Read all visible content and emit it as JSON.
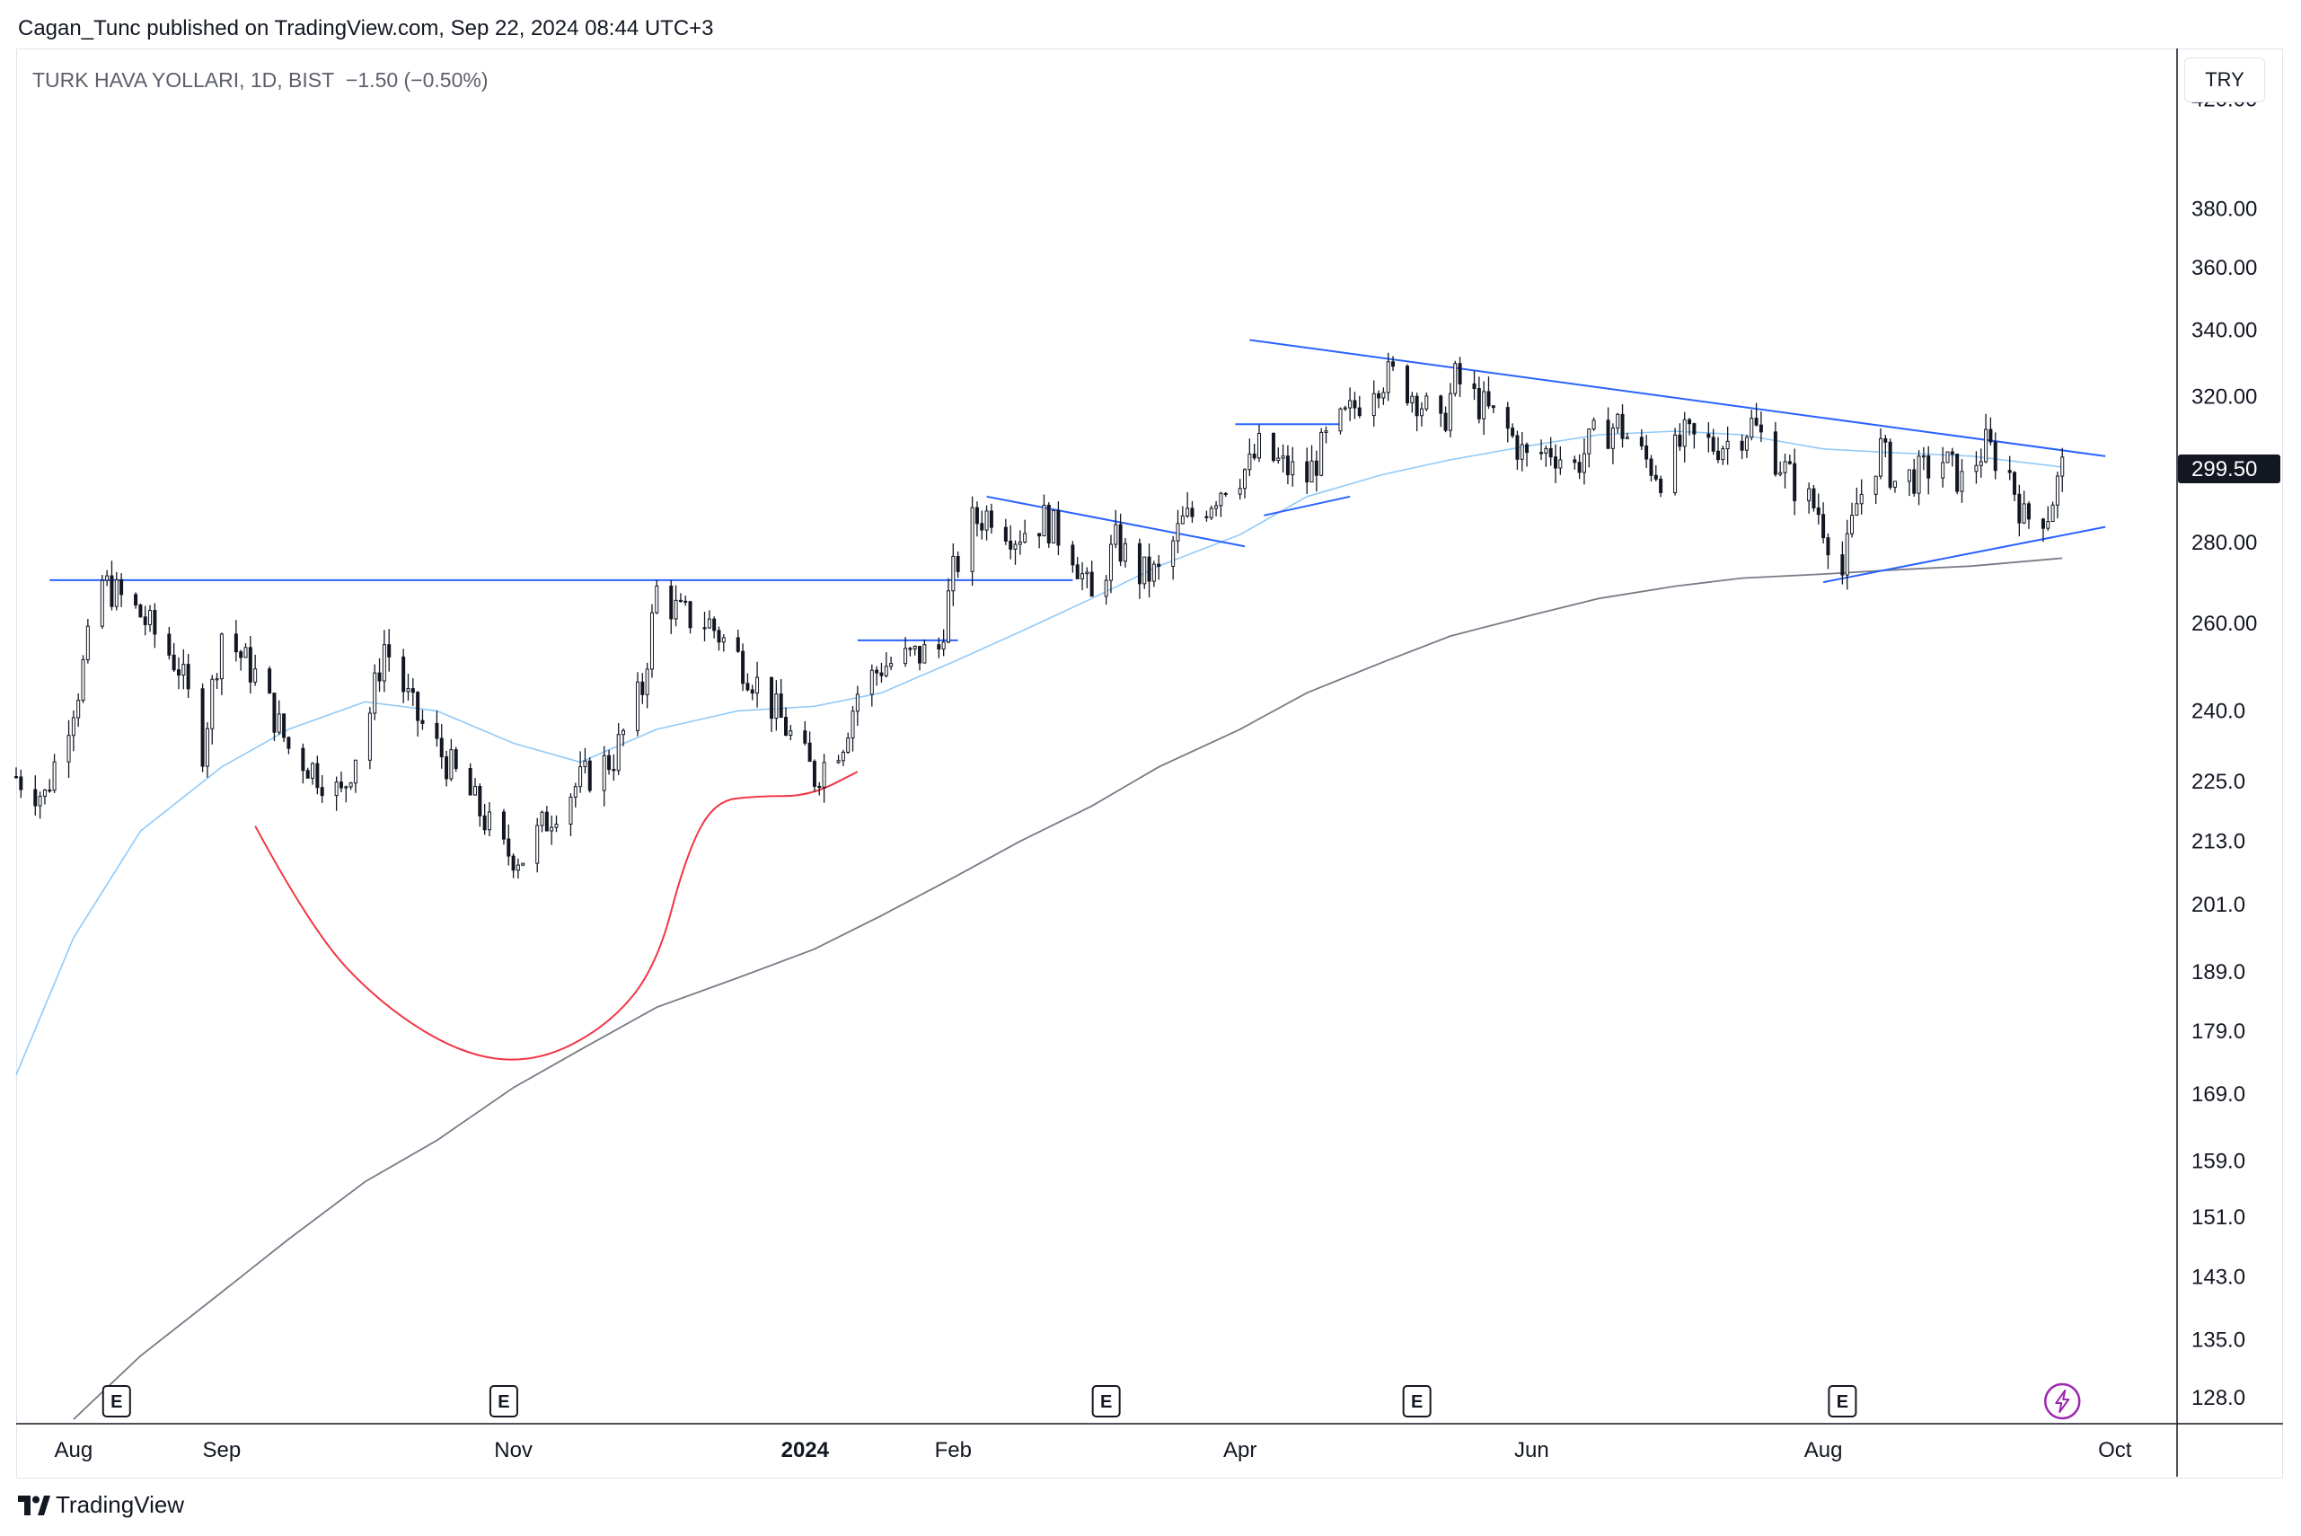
{
  "header": {
    "published": "Cagan_Tunc published on TradingView.com, Sep 22, 2024 08:44 UTC+3"
  },
  "legend": {
    "symbol": "TURK HAVA YOLLARI, 1D, BIST",
    "change": "−1.50 (−0.50%)"
  },
  "currency": "TRY",
  "brand": "TradingView",
  "colors": {
    "candle_up": "#ffffff",
    "candle_down": "#131722",
    "candle_border": "#131722",
    "ma_fast": "#90caf9",
    "ma_slow": "#787b86",
    "trendline": "#2962ff",
    "curve": "#f23645",
    "price_tag": "#131722",
    "earnings_icon": "#131722",
    "dividend_icon": "#9c27b0"
  },
  "chart_data": {
    "type": "candlestick",
    "title": "",
    "ylabel": "",
    "y_scale": "log",
    "ylim": [
      125,
      440
    ],
    "xlim": [
      "2023-07-20",
      "2024-10-14"
    ],
    "y_ticks": [
      "420.00",
      "380.00",
      "360.00",
      "340.00",
      "320.00",
      "300.00",
      "280.00",
      "260.00",
      "240.0",
      "225.0",
      "213.0",
      "201.0",
      "189.0",
      "179.0",
      "169.0",
      "159.0",
      "151.0",
      "143.0",
      "135.0",
      "128.0"
    ],
    "x_ticks": [
      {
        "label": "Aug",
        "date": "2023-08-01"
      },
      {
        "label": "Sep",
        "date": "2023-09-01"
      },
      {
        "label": "Nov",
        "date": "2023-11-01"
      },
      {
        "label": "2024",
        "date": "2024-01-01",
        "bold": true
      },
      {
        "label": "Feb",
        "date": "2024-02-01"
      },
      {
        "label": "Apr",
        "date": "2024-04-01"
      },
      {
        "label": "Jun",
        "date": "2024-06-01"
      },
      {
        "label": "Aug",
        "date": "2024-08-01"
      },
      {
        "label": "Oct",
        "date": "2024-10-01"
      }
    ],
    "last_price": "299.50",
    "close_path": [
      [
        "2023-07-20",
        226
      ],
      [
        "2023-07-26",
        222
      ],
      [
        "2023-08-02",
        245
      ],
      [
        "2023-08-07",
        270
      ],
      [
        "2023-08-15",
        262
      ],
      [
        "2023-08-23",
        250
      ],
      [
        "2023-08-28",
        232
      ],
      [
        "2023-09-01",
        258
      ],
      [
        "2023-09-08",
        248
      ],
      [
        "2023-09-15",
        232
      ],
      [
        "2023-09-22",
        226
      ],
      [
        "2023-09-26",
        222
      ],
      [
        "2023-10-02",
        240
      ],
      [
        "2023-10-05",
        255
      ],
      [
        "2023-10-11",
        240
      ],
      [
        "2023-10-16",
        232
      ],
      [
        "2023-10-23",
        222
      ],
      [
        "2023-10-30",
        211
      ],
      [
        "2023-11-03",
        210
      ],
      [
        "2023-11-10",
        220
      ],
      [
        "2023-11-15",
        225
      ],
      [
        "2023-11-22",
        230
      ],
      [
        "2023-11-28",
        245
      ],
      [
        "2023-12-01",
        268
      ],
      [
        "2023-12-06",
        262
      ],
      [
        "2023-12-12",
        260
      ],
      [
        "2023-12-18",
        252
      ],
      [
        "2023-12-22",
        246
      ],
      [
        "2023-12-27",
        238
      ],
      [
        "2024-01-03",
        226
      ],
      [
        "2024-01-09",
        234
      ],
      [
        "2024-01-12",
        244
      ],
      [
        "2024-01-17",
        250
      ],
      [
        "2024-01-23",
        252
      ],
      [
        "2024-01-29",
        254
      ],
      [
        "2024-02-01",
        272
      ],
      [
        "2024-02-05",
        285
      ],
      [
        "2024-02-09",
        288
      ],
      [
        "2024-02-14",
        282
      ],
      [
        "2024-02-20",
        286
      ],
      [
        "2024-02-26",
        278
      ],
      [
        "2024-03-01",
        265
      ],
      [
        "2024-03-06",
        280
      ],
      [
        "2024-03-11",
        272
      ],
      [
        "2024-03-15",
        272
      ],
      [
        "2024-03-20",
        285
      ],
      [
        "2024-03-25",
        290
      ],
      [
        "2024-03-29",
        296
      ],
      [
        "2024-04-03",
        300
      ],
      [
        "2024-04-05",
        305
      ],
      [
        "2024-04-10",
        300
      ],
      [
        "2024-04-15",
        297
      ],
      [
        "2024-04-19",
        307
      ],
      [
        "2024-04-24",
        315
      ],
      [
        "2024-04-29",
        325
      ],
      [
        "2024-05-03",
        326
      ],
      [
        "2024-05-08",
        320
      ],
      [
        "2024-05-13",
        310
      ],
      [
        "2024-05-16",
        325
      ],
      [
        "2024-05-21",
        318
      ],
      [
        "2024-05-27",
        310
      ],
      [
        "2024-05-31",
        302
      ],
      [
        "2024-06-05",
        305
      ],
      [
        "2024-06-10",
        300
      ],
      [
        "2024-06-14",
        308
      ],
      [
        "2024-06-19",
        312
      ],
      [
        "2024-06-24",
        303
      ],
      [
        "2024-06-28",
        298
      ],
      [
        "2024-07-03",
        308
      ],
      [
        "2024-07-09",
        306
      ],
      [
        "2024-07-12",
        307
      ],
      [
        "2024-07-17",
        312
      ],
      [
        "2024-07-22",
        303
      ],
      [
        "2024-07-26",
        295
      ],
      [
        "2024-07-31",
        288
      ],
      [
        "2024-08-05",
        272
      ],
      [
        "2024-08-08",
        290
      ],
      [
        "2024-08-13",
        305
      ],
      [
        "2024-08-16",
        296
      ],
      [
        "2024-08-21",
        298
      ],
      [
        "2024-08-26",
        302
      ],
      [
        "2024-08-30",
        296
      ],
      [
        "2024-09-04",
        306
      ],
      [
        "2024-09-09",
        298
      ],
      [
        "2024-09-12",
        286
      ],
      [
        "2024-09-17",
        288
      ],
      [
        "2024-09-20",
        299.5
      ]
    ],
    "series": [
      {
        "name": "",
        "type": "moving_average",
        "color": "#90caf9",
        "points": [
          [
            "2023-07-20",
            172
          ],
          [
            "2023-08-01",
            195
          ],
          [
            "2023-08-15",
            215
          ],
          [
            "2023-09-01",
            228
          ],
          [
            "2023-09-15",
            236
          ],
          [
            "2023-10-01",
            242
          ],
          [
            "2023-10-16",
            240
          ],
          [
            "2023-11-01",
            233
          ],
          [
            "2023-11-15",
            229
          ],
          [
            "2023-12-01",
            236
          ],
          [
            "2023-12-18",
            240
          ],
          [
            "2024-01-03",
            241
          ],
          [
            "2024-01-17",
            244
          ],
          [
            "2024-02-01",
            251
          ],
          [
            "2024-02-15",
            258
          ],
          [
            "2024-03-01",
            266
          ],
          [
            "2024-03-15",
            274
          ],
          [
            "2024-04-01",
            282
          ],
          [
            "2024-04-15",
            292
          ],
          [
            "2024-05-01",
            298
          ],
          [
            "2024-05-15",
            302
          ],
          [
            "2024-06-01",
            306
          ],
          [
            "2024-06-15",
            309
          ],
          [
            "2024-07-01",
            310
          ],
          [
            "2024-07-15",
            309
          ],
          [
            "2024-08-01",
            305
          ],
          [
            "2024-08-15",
            304
          ],
          [
            "2024-09-01",
            303
          ],
          [
            "2024-09-20",
            300
          ]
        ]
      },
      {
        "name": "",
        "type": "moving_average",
        "color": "#787b86",
        "points": [
          [
            "2023-08-01",
            125.5
          ],
          [
            "2023-08-15",
            133
          ],
          [
            "2023-09-01",
            141
          ],
          [
            "2023-09-15",
            148
          ],
          [
            "2023-10-01",
            156
          ],
          [
            "2023-10-16",
            162
          ],
          [
            "2023-11-01",
            170
          ],
          [
            "2023-11-15",
            176
          ],
          [
            "2023-12-01",
            183
          ],
          [
            "2023-12-18",
            188
          ],
          [
            "2024-01-03",
            193
          ],
          [
            "2024-01-17",
            199
          ],
          [
            "2024-02-01",
            206
          ],
          [
            "2024-02-15",
            213
          ],
          [
            "2024-03-01",
            220
          ],
          [
            "2024-03-15",
            228
          ],
          [
            "2024-04-01",
            236
          ],
          [
            "2024-04-15",
            244
          ],
          [
            "2024-05-01",
            251
          ],
          [
            "2024-05-15",
            257
          ],
          [
            "2024-06-01",
            262
          ],
          [
            "2024-06-15",
            266
          ],
          [
            "2024-07-01",
            269
          ],
          [
            "2024-07-15",
            271
          ],
          [
            "2024-08-01",
            272
          ],
          [
            "2024-08-15",
            273
          ],
          [
            "2024-09-01",
            274
          ],
          [
            "2024-09-20",
            276
          ]
        ]
      }
    ],
    "drawings": {
      "lines": [
        {
          "p1": [
            "2023-07-27",
            270.5
          ],
          "p2": [
            "2024-02-26",
            270.5
          ]
        },
        {
          "p1": [
            "2024-01-12",
            256
          ],
          "p2": [
            "2024-02-02",
            256
          ]
        },
        {
          "p1": [
            "2024-02-08",
            292
          ],
          "p2": [
            "2024-04-02",
            279
          ]
        },
        {
          "p1": [
            "2024-03-31",
            312
          ],
          "p2": [
            "2024-04-22",
            312
          ]
        },
        {
          "p1": [
            "2024-04-06",
            287
          ],
          "p2": [
            "2024-04-24",
            292
          ]
        },
        {
          "p1": [
            "2024-04-03",
            337
          ],
          "p2": [
            "2024-09-29",
            303
          ]
        },
        {
          "p1": [
            "2024-08-01",
            270
          ],
          "p2": [
            "2024-09-29",
            284
          ]
        }
      ],
      "curve": [
        [
          "2023-09-08",
          216
        ],
        [
          "2023-09-20",
          196
        ],
        [
          "2023-10-05",
          183
        ],
        [
          "2023-10-22",
          175
        ],
        [
          "2023-11-06",
          174
        ],
        [
          "2023-11-21",
          180
        ],
        [
          "2023-12-01",
          190
        ],
        [
          "2023-12-07",
          210
        ],
        [
          "2023-12-13",
          221
        ],
        [
          "2023-12-22",
          222
        ],
        [
          "2024-01-02",
          222
        ],
        [
          "2024-01-12",
          227
        ]
      ]
    },
    "earnings_events": [
      "2023-08-10",
      "2023-10-30",
      "2024-03-04",
      "2024-05-08",
      "2024-08-05"
    ],
    "dividend_events": [
      "2024-09-20"
    ]
  }
}
